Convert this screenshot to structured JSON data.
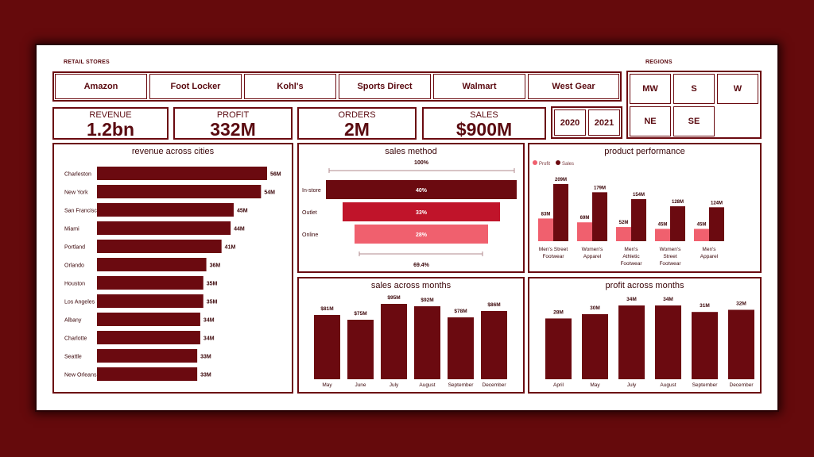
{
  "header": {
    "retail_stores_label": "RETAIL STORES",
    "regions_label": "REGIONS"
  },
  "stores": [
    "Amazon",
    "Foot Locker",
    "Kohl's",
    "Sports Direct",
    "Walmart",
    "West Gear"
  ],
  "regions": [
    "MW",
    "S",
    "W",
    "NE",
    "SE"
  ],
  "years": [
    "2020",
    "2021"
  ],
  "kpis": [
    {
      "title": "REVENUE",
      "value": "1.2bn"
    },
    {
      "title": "PROFIT",
      "value": "332M"
    },
    {
      "title": "ORDERS",
      "value": "2M"
    },
    {
      "title": "SALES",
      "value": "$900M"
    }
  ],
  "colors": {
    "dark": "#6b0a10",
    "mid": "#c0142a",
    "light": "#f0606e",
    "profit": "#f0606e",
    "sales": "#6b0a10"
  },
  "chart_data": [
    {
      "type": "bar",
      "orientation": "horizontal",
      "title": "revenue across cities",
      "categories": [
        "Charleston",
        "New York",
        "San Francisco",
        "Miami",
        "Portland",
        "Orlando",
        "Houston",
        "Los Angeles",
        "Albany",
        "Charlotte",
        "Seattle",
        "New Orleans"
      ],
      "values": [
        56,
        54,
        45,
        44,
        41,
        36,
        35,
        35,
        34,
        34,
        33,
        33
      ],
      "data_labels": [
        "56M",
        "54M",
        "45M",
        "44M",
        "41M",
        "36M",
        "35M",
        "35M",
        "34M",
        "34M",
        "33M",
        "33M"
      ]
    },
    {
      "type": "bar",
      "subtype": "funnel",
      "title": "sales method",
      "categories": [
        "In-store",
        "Outlet",
        "Online"
      ],
      "values": [
        40,
        33,
        28
      ],
      "data_labels": [
        "40%",
        "33%",
        "28%"
      ],
      "top_label": "100%",
      "bottom_label": "69.4%"
    },
    {
      "type": "bar",
      "subtype": "grouped",
      "title": "product performance",
      "categories": [
        "Men's Street Footwear",
        "Women's Apparel",
        "Men's Athletic Footwear",
        "Women's Street Footwear",
        "Men's Apparel"
      ],
      "category_lines": [
        [
          "Men's Street",
          "Footwear"
        ],
        [
          "Women's",
          "Apparel"
        ],
        [
          "Men's",
          "Athletic",
          "Footwear"
        ],
        [
          "Women's",
          "Street",
          "Footwear"
        ],
        [
          "Men's",
          "Apparel"
        ]
      ],
      "series": [
        {
          "name": "Profit",
          "values": [
            83,
            69,
            52,
            45,
            45
          ],
          "labels": [
            "83M",
            "69M",
            "52M",
            "45M",
            "45M"
          ]
        },
        {
          "name": "Sales",
          "values": [
            209,
            179,
            154,
            128,
            124
          ],
          "labels": [
            "209M",
            "179M",
            "154M",
            "128M",
            "124M"
          ]
        }
      ],
      "legend": "top-left"
    },
    {
      "type": "bar",
      "title": "sales across months",
      "categories": [
        "May",
        "June",
        "July",
        "August",
        "September",
        "December"
      ],
      "values": [
        81,
        75,
        95,
        92,
        78,
        86
      ],
      "data_labels": [
        "$81M",
        "$75M",
        "$95M",
        "$92M",
        "$78M",
        "$86M"
      ]
    },
    {
      "type": "bar",
      "title": "profit across months",
      "categories": [
        "April",
        "May",
        "July",
        "August",
        "September",
        "December"
      ],
      "values": [
        28,
        30,
        34,
        34,
        31,
        32
      ],
      "data_labels": [
        "28M",
        "30M",
        "34M",
        "34M",
        "31M",
        "32M"
      ]
    }
  ]
}
